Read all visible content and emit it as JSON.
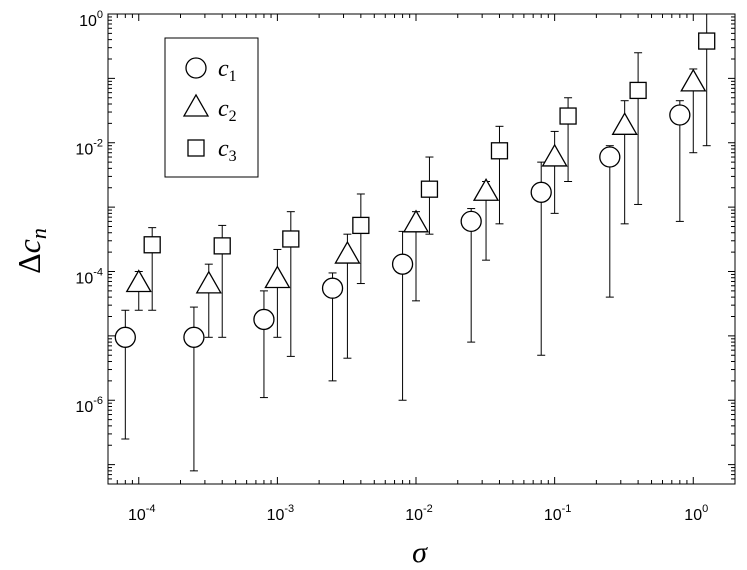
{
  "chart_data": {
    "type": "scatter",
    "xscale": "log",
    "yscale": "log",
    "xlim": [
      6e-05,
      2
    ],
    "ylim": [
      5e-08,
      1
    ],
    "xlabel": "σ",
    "ylabel": "Δc",
    "ylabel_sub": "n",
    "grid": false,
    "legend_position": "top-left",
    "x_ticks": [
      {
        "base": "10",
        "exp": "-4",
        "value": 0.0001
      },
      {
        "base": "10",
        "exp": "-3",
        "value": 0.001
      },
      {
        "base": "10",
        "exp": "-2",
        "value": 0.01
      },
      {
        "base": "10",
        "exp": "-1",
        "value": 0.1
      },
      {
        "base": "10",
        "exp": "0",
        "value": 1
      }
    ],
    "y_ticks": [
      {
        "base": "10",
        "exp": "-6",
        "value": 1e-06
      },
      {
        "base": "10",
        "exp": "-4",
        "value": 0.0001
      },
      {
        "base": "10",
        "exp": "-2",
        "value": 0.01
      },
      {
        "base": "10",
        "exp": "0",
        "value": 1
      }
    ],
    "series": [
      {
        "name": "c",
        "name_sub": "1",
        "marker": "circle",
        "points": [
          {
            "x": 8e-05,
            "y": 9.5e-06,
            "lo": 2.5e-07,
            "hi": 2.5e-05
          },
          {
            "x": 0.00025,
            "y": 9.5e-06,
            "lo": 8e-08,
            "hi": 2.8e-05
          },
          {
            "x": 0.0008,
            "y": 1.8e-05,
            "lo": 1.1e-06,
            "hi": 5e-05
          },
          {
            "x": 0.0025,
            "y": 5.5e-05,
            "lo": 2e-06,
            "hi": 9.5e-05
          },
          {
            "x": 0.008,
            "y": 0.00013,
            "lo": 1e-06,
            "hi": 0.00042
          },
          {
            "x": 0.025,
            "y": 0.0006,
            "lo": 8e-06,
            "hi": 0.00095
          },
          {
            "x": 0.08,
            "y": 0.0017,
            "lo": 5e-06,
            "hi": 0.005
          },
          {
            "x": 0.25,
            "y": 0.006,
            "lo": 4e-05,
            "hi": 0.009
          },
          {
            "x": 0.8,
            "y": 0.027,
            "lo": 0.0006,
            "hi": 0.045
          }
        ]
      },
      {
        "name": "c",
        "name_sub": "2",
        "marker": "triangle",
        "points": [
          {
            "x": 0.0001,
            "y": 6.5e-05,
            "lo": 2.5e-05,
            "hi": 0.0001
          },
          {
            "x": 0.00032,
            "y": 6.2e-05,
            "lo": 9.5e-06,
            "hi": 0.00013
          },
          {
            "x": 0.001,
            "y": 7.5e-05,
            "lo": 9.5e-06,
            "hi": 0.00022
          },
          {
            "x": 0.0032,
            "y": 0.00018,
            "lo": 4.5e-06,
            "hi": 0.00038
          },
          {
            "x": 0.01,
            "y": 0.00055,
            "lo": 3.5e-05,
            "hi": 0.00085
          },
          {
            "x": 0.032,
            "y": 0.0017,
            "lo": 0.00015,
            "hi": 0.0025
          },
          {
            "x": 0.1,
            "y": 0.0058,
            "lo": 0.0008,
            "hi": 0.015
          },
          {
            "x": 0.32,
            "y": 0.018,
            "lo": 0.00055,
            "hi": 0.045
          },
          {
            "x": 1.0,
            "y": 0.085,
            "lo": 0.007,
            "hi": 0.14
          }
        ]
      },
      {
        "name": "c",
        "name_sub": "3",
        "marker": "square",
        "points": [
          {
            "x": 0.000125,
            "y": 0.00026,
            "lo": 2.5e-05,
            "hi": 0.00048
          },
          {
            "x": 0.0004,
            "y": 0.00025,
            "lo": 9.5e-06,
            "hi": 0.00052
          },
          {
            "x": 0.00125,
            "y": 0.00032,
            "lo": 4.8e-06,
            "hi": 0.00085
          },
          {
            "x": 0.004,
            "y": 0.00052,
            "lo": 6.5e-05,
            "hi": 0.0016
          },
          {
            "x": 0.0125,
            "y": 0.0019,
            "lo": 0.00038,
            "hi": 0.006
          },
          {
            "x": 0.04,
            "y": 0.0075,
            "lo": 0.00055,
            "hi": 0.018
          },
          {
            "x": 0.125,
            "y": 0.026,
            "lo": 0.0025,
            "hi": 0.05
          },
          {
            "x": 0.4,
            "y": 0.065,
            "lo": 0.0011,
            "hi": 0.25
          },
          {
            "x": 1.25,
            "y": 0.38,
            "lo": 0.009,
            "hi": 1.0
          }
        ]
      }
    ]
  }
}
